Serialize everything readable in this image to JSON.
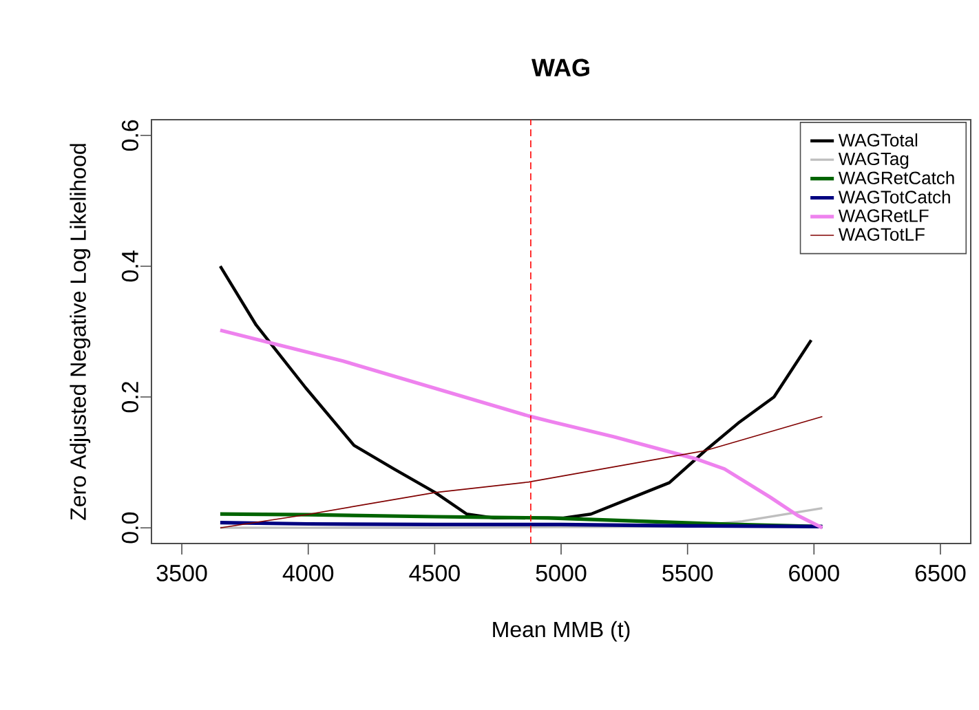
{
  "chart_data": {
    "type": "line",
    "title": "WAG",
    "xlabel": "Mean MMB (t)",
    "ylabel": "Zero Adjusted Negative Log Likelihood",
    "xlim": [
      3380,
      6620
    ],
    "ylim": [
      -0.024,
      0.624
    ],
    "xticks": [
      3500,
      4000,
      4500,
      5000,
      5500,
      6000,
      6500
    ],
    "yticks": [
      {
        "value": 0,
        "label": "0.0"
      },
      {
        "value": 0.2,
        "label": "0.2"
      },
      {
        "value": 0.4,
        "label": "0.4"
      },
      {
        "value": 0.6,
        "label": "0.6"
      }
    ],
    "grid": false,
    "legend": "top right",
    "marker": "none",
    "line_style": "solid",
    "ref_lines": [
      {
        "axis": "x",
        "value": 4880,
        "color": "#ff0000",
        "line_style": "dashed"
      }
    ],
    "series": [
      {
        "name": "WAGTotal",
        "color": "#000000",
        "x": [
          3652,
          3794,
          3990,
          4181,
          4339,
          4502,
          4627,
          4736,
          5009,
          5118,
          5428,
          5570,
          5700,
          5842,
          5989
        ],
        "values": [
          0.4,
          0.31,
          0.214,
          0.126,
          0.09,
          0.054,
          0.021,
          0.015,
          0.015,
          0.021,
          0.069,
          0.118,
          0.16,
          0.2,
          0.287
        ]
      },
      {
        "name": "WAGTag",
        "color": "#bebebe",
        "x": [
          3652,
          4500,
          5500,
          5717,
          6033
        ],
        "values": [
          0.0,
          0.0,
          0.002,
          0.01,
          0.03
        ]
      },
      {
        "name": "WAGRetCatch",
        "color": "#006400",
        "x": [
          3652,
          4000,
          4500,
          4950,
          5700,
          6033
        ],
        "values": [
          0.021,
          0.02,
          0.017,
          0.015,
          0.005,
          0.002
        ]
      },
      {
        "name": "WAGTotCatch",
        "color": "#000080",
        "x": [
          3652,
          4000,
          4500,
          5000,
          5500,
          6033
        ],
        "values": [
          0.008,
          0.006,
          0.005,
          0.005,
          0.003,
          0.002
        ]
      },
      {
        "name": "WAGRetLF",
        "color": "#ee82ee",
        "x": [
          3652,
          4137,
          4872,
          4954,
          5210,
          5537,
          5646,
          5826,
          5935,
          6033
        ],
        "values": [
          0.302,
          0.255,
          0.171,
          0.163,
          0.139,
          0.105,
          0.09,
          0.047,
          0.019,
          0.0
        ]
      },
      {
        "name": "WAGTotLF",
        "color": "#800000",
        "x": [
          3652,
          3990,
          4502,
          4872,
          5570,
          6033
        ],
        "values": [
          0.0,
          0.02,
          0.054,
          0.07,
          0.118,
          0.17
        ]
      }
    ]
  }
}
